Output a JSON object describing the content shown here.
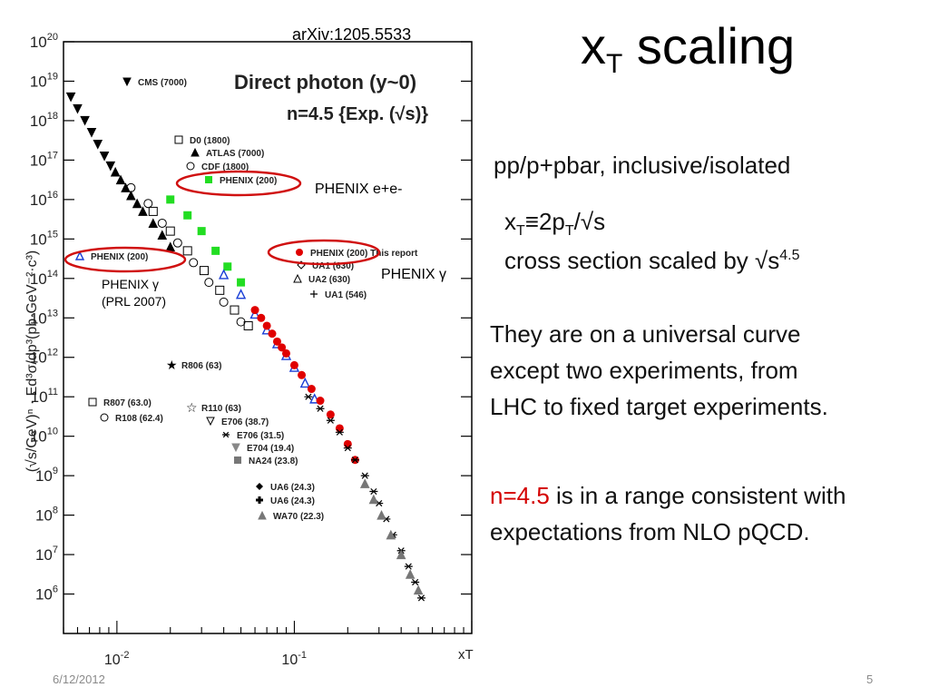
{
  "slide": {
    "title_main": "x",
    "title_sub": "T",
    "title_rest": " scaling",
    "reference": "arXiv:1205.5533",
    "line1": "pp/p+pbar, inclusive/isolated",
    "def_x": "x",
    "def_sub": "T",
    "def_rest": "≡2p",
    "def_sub2": "T",
    "def_tail": "/√s",
    "scaled_text": "cross section scaled by √s",
    "scaled_sup": "4.5",
    "universal": [
      "They are on a universal curve",
      "except two experiments, from",
      "LHC to fixed target experiments."
    ],
    "n_red": "n=4.5",
    "n_rest": " is in a range consistent with",
    "n_line2": "expectations from NLO pQCD.",
    "date": "6/12/2012",
    "page": "5"
  },
  "annotations": {
    "phenix_ee": "PHENIX e+e-",
    "phenix_gamma_right": "PHENIX γ",
    "phenix_gamma_left": "PHENIX γ",
    "prl": "(PRL 2007)"
  },
  "colors": {
    "phenix_green": "#22dd22",
    "phenix_red": "#e00000",
    "phenix_blue": "#1a3fd6",
    "circle_red": "#d01010"
  },
  "chart_data": {
    "type": "scatter",
    "title": "Direct photon (y~0)",
    "subtitle": "n=4.5 {Exp. (√s)}",
    "xlabel": "xT",
    "ylabel": "(√s/GeV)ⁿ · Ed³σ/dp³(pb·GeV⁻²·c³)",
    "xscale": "log",
    "yscale": "log",
    "xlim": [
      0.005,
      1.0
    ],
    "ylim": [
      100000,
      1e+20
    ],
    "xticks": [
      {
        "v": 0.01,
        "label": "10-2"
      },
      {
        "v": 0.1,
        "label": "10-1"
      }
    ],
    "yticks": [
      6,
      7,
      8,
      9,
      10,
      11,
      12,
      13,
      14,
      15,
      16,
      17,
      18,
      19,
      20
    ],
    "legend": [
      {
        "label": "CMS (7000)",
        "marker": "tri-down",
        "fill": "#000"
      },
      {
        "label": "D0 (1800)",
        "marker": "square-open",
        "fill": "none"
      },
      {
        "label": "ATLAS (7000)",
        "marker": "tri-up",
        "fill": "#000"
      },
      {
        "label": "CDF (1800)",
        "marker": "circle-open",
        "fill": "none"
      },
      {
        "label": "PHENIX (200)",
        "marker": "square",
        "fill": "#22dd22"
      },
      {
        "label": "PHENIX (200)",
        "marker": "tri-open-blue",
        "fill": "none"
      },
      {
        "label": "PHENIX (200) This report",
        "marker": "circle",
        "fill": "#e00000"
      },
      {
        "label": "UA1 (630)",
        "marker": "diamond-open",
        "fill": "none"
      },
      {
        "label": "UA2 (630)",
        "marker": "tri-open",
        "fill": "none"
      },
      {
        "label": "UA1 (546)",
        "marker": "cross-open",
        "fill": "none"
      },
      {
        "label": "R806 (63)",
        "marker": "star",
        "fill": "#000"
      },
      {
        "label": "R807 (63.0)",
        "marker": "square-open",
        "fill": "none"
      },
      {
        "label": "R108 (62.4)",
        "marker": "circle-open",
        "fill": "none"
      },
      {
        "label": "R110 (63)",
        "marker": "star-open",
        "fill": "none"
      },
      {
        "label": "E706 (38.7)",
        "marker": "tri-down-open",
        "fill": "none"
      },
      {
        "label": "E706 (31.5)",
        "marker": "asterisk",
        "fill": "none"
      },
      {
        "label": "E704 (19.4)",
        "marker": "tri-down",
        "fill": "#888"
      },
      {
        "label": "NA24 (23.8)",
        "marker": "square",
        "fill": "#777"
      },
      {
        "label": "UA6 (24.3)",
        "marker": "diamond",
        "fill": "#000"
      },
      {
        "label": "UA6 (24.3)",
        "marker": "cross",
        "fill": "#000"
      },
      {
        "label": "WA70 (22.3)",
        "marker": "tri-up",
        "fill": "#777"
      }
    ],
    "series": [
      {
        "name": "CMS (7000)",
        "marker": "tri-down",
        "fill": "#000",
        "points": [
          [
            0.0055,
            18.6
          ],
          [
            0.006,
            18.3
          ],
          [
            0.0066,
            18.0
          ],
          [
            0.0072,
            17.7
          ],
          [
            0.0078,
            17.4
          ],
          [
            0.0085,
            17.1
          ],
          [
            0.0092,
            16.85
          ]
        ]
      },
      {
        "name": "ATLAS (7000)",
        "marker": "tri-up",
        "fill": "#000",
        "points": [
          [
            0.0098,
            16.7
          ],
          [
            0.0105,
            16.5
          ],
          [
            0.0112,
            16.3
          ],
          [
            0.012,
            16.1
          ],
          [
            0.013,
            15.9
          ],
          [
            0.014,
            15.7
          ],
          [
            0.016,
            15.4
          ],
          [
            0.018,
            15.1
          ],
          [
            0.02,
            14.8
          ]
        ]
      },
      {
        "name": "CDF (1800)",
        "marker": "circle-open",
        "fill": "none",
        "points": [
          [
            0.012,
            16.3
          ],
          [
            0.015,
            15.9
          ],
          [
            0.018,
            15.4
          ],
          [
            0.022,
            14.9
          ],
          [
            0.027,
            14.4
          ],
          [
            0.033,
            13.9
          ],
          [
            0.04,
            13.4
          ],
          [
            0.05,
            12.9
          ]
        ]
      },
      {
        "name": "D0 (1800)",
        "marker": "square-open",
        "fill": "none",
        "points": [
          [
            0.016,
            15.7
          ],
          [
            0.02,
            15.2
          ],
          [
            0.025,
            14.7
          ],
          [
            0.031,
            14.2
          ],
          [
            0.038,
            13.7
          ],
          [
            0.046,
            13.2
          ],
          [
            0.055,
            12.8
          ]
        ]
      },
      {
        "name": "PHENIX (200) e+e-",
        "marker": "square",
        "fill": "#22dd22",
        "points": [
          [
            0.02,
            16.0
          ],
          [
            0.025,
            15.6
          ],
          [
            0.03,
            15.2
          ],
          [
            0.036,
            14.7
          ],
          [
            0.042,
            14.3
          ],
          [
            0.05,
            13.9
          ]
        ]
      },
      {
        "name": "PHENIX (200) PRL 2007",
        "marker": "tri-open-blue",
        "fill": "none",
        "points": [
          [
            0.04,
            14.1
          ],
          [
            0.05,
            13.6
          ],
          [
            0.06,
            13.1
          ],
          [
            0.07,
            12.7
          ],
          [
            0.08,
            12.35
          ],
          [
            0.09,
            12.05
          ],
          [
            0.1,
            11.75
          ],
          [
            0.115,
            11.35
          ],
          [
            0.13,
            10.95
          ]
        ]
      },
      {
        "name": "PHENIX (200) This report",
        "marker": "circle",
        "fill": "#e00000",
        "points": [
          [
            0.06,
            13.2
          ],
          [
            0.065,
            13.0
          ],
          [
            0.07,
            12.8
          ],
          [
            0.075,
            12.6
          ],
          [
            0.08,
            12.4
          ],
          [
            0.085,
            12.25
          ],
          [
            0.09,
            12.1
          ],
          [
            0.1,
            11.8
          ],
          [
            0.11,
            11.55
          ],
          [
            0.125,
            11.2
          ],
          [
            0.14,
            10.9
          ],
          [
            0.16,
            10.55
          ],
          [
            0.18,
            10.2
          ],
          [
            0.2,
            9.8
          ],
          [
            0.22,
            9.4
          ]
        ]
      },
      {
        "name": "Fixed target",
        "marker": "asterisk",
        "fill": "none",
        "points": [
          [
            0.12,
            11.0
          ],
          [
            0.14,
            10.7
          ],
          [
            0.16,
            10.4
          ],
          [
            0.18,
            10.1
          ],
          [
            0.2,
            9.7
          ],
          [
            0.22,
            9.4
          ],
          [
            0.25,
            9.0
          ],
          [
            0.28,
            8.6
          ],
          [
            0.3,
            8.3
          ],
          [
            0.33,
            7.9
          ],
          [
            0.36,
            7.5
          ],
          [
            0.4,
            7.1
          ],
          [
            0.44,
            6.7
          ],
          [
            0.48,
            6.3
          ],
          [
            0.52,
            5.9
          ]
        ]
      },
      {
        "name": "UA6/WA70",
        "marker": "tri-up",
        "fill": "#777",
        "points": [
          [
            0.25,
            8.8
          ],
          [
            0.28,
            8.4
          ],
          [
            0.31,
            8.0
          ],
          [
            0.35,
            7.5
          ],
          [
            0.4,
            7.0
          ],
          [
            0.45,
            6.5
          ],
          [
            0.5,
            6.1
          ]
        ]
      }
    ]
  }
}
